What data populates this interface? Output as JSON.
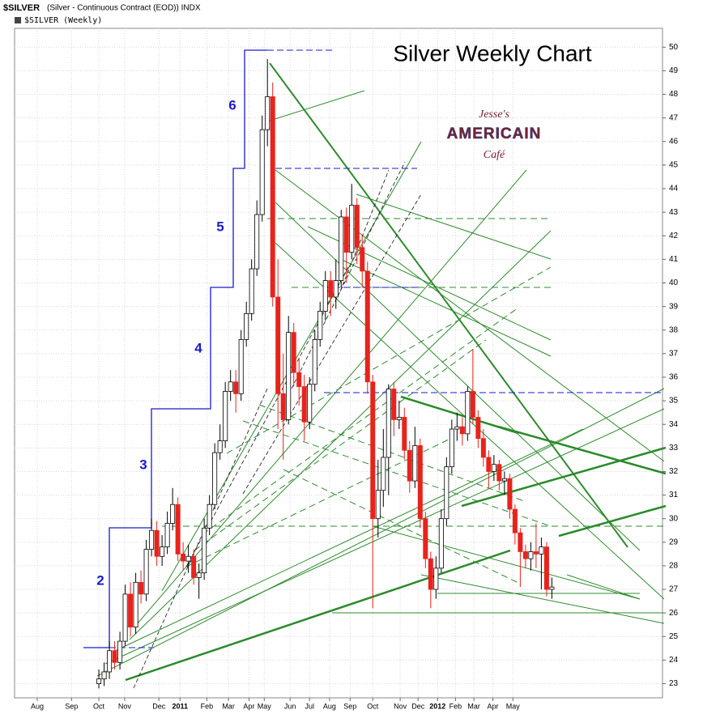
{
  "chart_data": {
    "type": "candlestick",
    "title": "Silver Weekly Chart",
    "header_symbol": "$SILVER",
    "header_desc": "(Silver - Continuous Contract (EOD)) INDX",
    "legend_label": "$SILVER (Weekly)",
    "logo": [
      "Jesse's",
      "AMERICAIN",
      "Café"
    ],
    "wave_labels": [
      "2",
      "3",
      "4",
      "5",
      "6"
    ],
    "up_color": "#ffffff",
    "down_color": "#e8231c",
    "grid": true,
    "xlim": [
      0,
      123
    ],
    "ylim": [
      22.4,
      50.8
    ],
    "yticks": [
      23,
      24,
      25,
      26,
      27,
      28,
      29,
      30,
      31,
      32,
      33,
      34,
      35,
      36,
      37,
      38,
      39,
      40,
      41,
      42,
      43,
      44,
      45,
      46,
      47,
      48,
      49,
      50
    ],
    "xticks": [
      {
        "value": 4.3,
        "label": "Aug"
      },
      {
        "value": 10.8,
        "label": "Sep"
      },
      {
        "value": 16,
        "label": "Oct"
      },
      {
        "value": 20.9,
        "label": "Nov"
      },
      {
        "value": 27.4,
        "label": "Dec"
      },
      {
        "value": 31.4,
        "label": "2011"
      },
      {
        "value": 36.5,
        "label": "Feb"
      },
      {
        "value": 40.6,
        "label": "Mar"
      },
      {
        "value": 44.5,
        "label": "Apr"
      },
      {
        "value": 47.4,
        "label": "May"
      },
      {
        "value": 52.3,
        "label": "Jun"
      },
      {
        "value": 56,
        "label": "Jul"
      },
      {
        "value": 59.8,
        "label": "Aug"
      },
      {
        "value": 63.7,
        "label": "Sep"
      },
      {
        "value": 68,
        "label": "Oct"
      },
      {
        "value": 73.2,
        "label": "Nov"
      },
      {
        "value": 76.6,
        "label": "Dec"
      },
      {
        "value": 80.3,
        "label": "2012"
      },
      {
        "value": 83.7,
        "label": "Feb"
      },
      {
        "value": 87.2,
        "label": "Mar"
      },
      {
        "value": 90.8,
        "label": "Apr"
      },
      {
        "value": 94.6,
        "label": "May"
      }
    ],
    "x": [
      16,
      17,
      18,
      19,
      20,
      21,
      22,
      23,
      24,
      25,
      26,
      27,
      28,
      29,
      30,
      31,
      32,
      33,
      34,
      35,
      36,
      37,
      38,
      39,
      40,
      41,
      42,
      43,
      44,
      45,
      46,
      47,
      48,
      49,
      50,
      51,
      52,
      53,
      54,
      55,
      56,
      57,
      58,
      59,
      60,
      61,
      62,
      63,
      64,
      65,
      66,
      67,
      68,
      69,
      70,
      71,
      72,
      73,
      74,
      75,
      76,
      77,
      78,
      79,
      80,
      81,
      82,
      83,
      84,
      85,
      86,
      87,
      88,
      89,
      90,
      91,
      92,
      93,
      94,
      95,
      96,
      97,
      98,
      99,
      100,
      101,
      102
    ],
    "open": [
      23.0,
      23.2,
      23.5,
      24.4,
      23.9,
      24.8,
      26.8,
      25.4,
      27.3,
      26.8,
      28.7,
      29.5,
      28.4,
      28.8,
      29.8,
      30.6,
      28.5,
      28.2,
      28.4,
      27.5,
      27.7,
      29.6,
      30.6,
      32.8,
      33.3,
      35.4,
      35.8,
      35.3,
      37.6,
      38.7,
      40.6,
      42.9,
      46.5,
      47.9,
      39.4,
      35.3,
      34.2,
      37.9,
      36.2,
      35.6,
      34.1,
      35.7,
      37.6,
      38.8,
      40.1,
      39.4,
      40.1,
      42.8,
      41.3,
      43.3,
      41.5,
      40.5,
      35.8,
      30.0,
      31.2,
      32.6,
      35.5,
      34.2,
      34.3,
      32.9,
      31.6,
      33.1,
      30.0,
      28.3,
      27.0,
      27.9,
      30.0,
      32.2,
      33.8,
      33.9,
      33.6,
      35.4,
      34.3,
      33.4,
      32.6,
      32.0,
      32.3,
      31.6,
      31.7,
      30.4,
      29.4,
      28.6,
      28.3,
      28.6,
      28.5,
      28.8,
      27.0
    ],
    "high": [
      23.6,
      23.9,
      24.8,
      24.8,
      25.2,
      27.2,
      27.3,
      27.7,
      27.8,
      29.1,
      30.0,
      29.9,
      29.3,
      30.3,
      31.3,
      30.9,
      29.0,
      28.9,
      28.7,
      28.1,
      30.0,
      31.0,
      33.2,
      34.0,
      35.8,
      36.3,
      36.3,
      38.0,
      39.2,
      41.0,
      43.5,
      47.1,
      49.5,
      48.5,
      41.0,
      37.0,
      38.6,
      38.3,
      36.8,
      36.1,
      36.0,
      38.0,
      39.2,
      40.5,
      40.5,
      41.0,
      43.1,
      43.2,
      44.2,
      43.6,
      42.0,
      40.9,
      36.1,
      32.5,
      33.8,
      35.7,
      35.8,
      35.0,
      34.7,
      33.3,
      33.9,
      33.4,
      30.3,
      28.6,
      28.4,
      30.4,
      32.6,
      34.2,
      34.5,
      34.3,
      35.6,
      37.2,
      34.6,
      33.8,
      32.9,
      32.7,
      32.5,
      32.0,
      31.9,
      30.6,
      29.6,
      28.9,
      29.0,
      29.8,
      29.2,
      29.0,
      27.5
    ],
    "low": [
      22.8,
      22.9,
      23.2,
      23.6,
      23.6,
      24.6,
      25.0,
      25.1,
      26.4,
      26.5,
      28.4,
      28.0,
      28.0,
      28.5,
      29.5,
      28.2,
      27.8,
      27.7,
      27.2,
      26.6,
      27.4,
      29.3,
      30.4,
      32.5,
      33.0,
      35.0,
      34.5,
      35.0,
      37.3,
      38.4,
      40.3,
      42.6,
      45.8,
      39.0,
      33.8,
      32.5,
      34.0,
      35.6,
      34.8,
      33.3,
      33.8,
      35.4,
      37.3,
      38.4,
      38.6,
      38.9,
      39.8,
      40.0,
      41.0,
      40.8,
      39.8,
      35.3,
      26.2,
      29.2,
      30.5,
      31.0,
      33.5,
      33.8,
      32.5,
      31.1,
      31.3,
      29.6,
      27.9,
      26.2,
      26.6,
      27.7,
      29.7,
      31.9,
      33.3,
      33.1,
      33.3,
      34.0,
      33.0,
      32.2,
      31.3,
      31.6,
      31.2,
      31.0,
      30.0,
      28.9,
      27.1,
      27.9,
      27.8,
      27.9,
      27.0,
      26.7,
      26.6
    ],
    "close": [
      23.2,
      23.5,
      24.4,
      23.9,
      24.8,
      26.8,
      25.4,
      27.3,
      26.8,
      28.7,
      29.5,
      28.4,
      28.8,
      29.8,
      30.6,
      28.5,
      28.2,
      28.4,
      27.5,
      27.7,
      29.6,
      30.6,
      32.8,
      33.3,
      35.4,
      35.8,
      35.3,
      37.6,
      38.7,
      40.6,
      42.9,
      46.5,
      47.9,
      39.4,
      35.3,
      34.2,
      37.9,
      36.2,
      35.6,
      34.1,
      35.7,
      37.6,
      38.8,
      40.1,
      39.4,
      40.1,
      42.8,
      41.3,
      43.3,
      41.5,
      40.5,
      35.8,
      30.0,
      31.2,
      32.6,
      35.5,
      34.2,
      34.3,
      32.9,
      31.6,
      33.1,
      30.0,
      28.3,
      27.0,
      27.9,
      30.0,
      32.2,
      33.8,
      33.9,
      33.6,
      35.4,
      34.3,
      33.4,
      32.6,
      32.0,
      32.3,
      31.6,
      31.7,
      30.4,
      29.4,
      28.6,
      28.3,
      28.6,
      28.5,
      28.8,
      27.0,
      27.1
    ]
  }
}
